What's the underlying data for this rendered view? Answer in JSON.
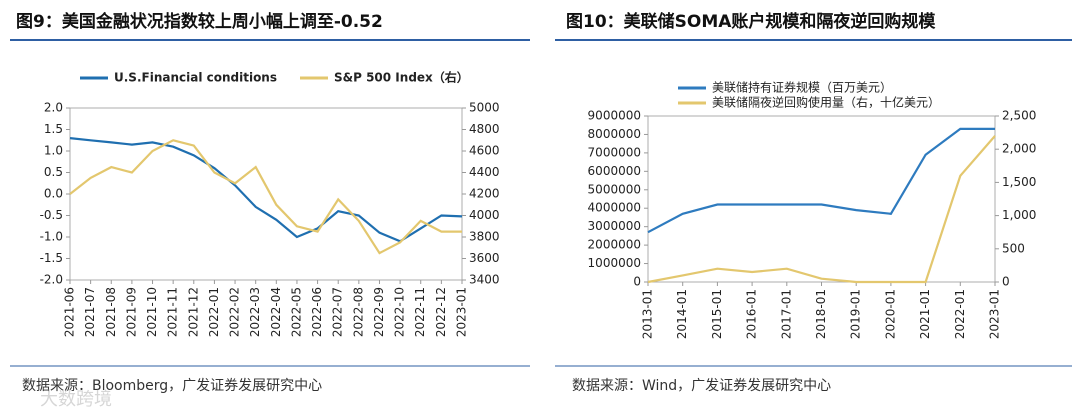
{
  "chart_data": [
    {
      "type": "line",
      "title": "图9：美国金融状况指数较上周小幅上调至-0.52",
      "source": "数据来源：Bloomberg，广发证券发展研究中心",
      "categories": [
        "2021-06",
        "2021-07",
        "2021-08",
        "2021-09",
        "2021-10",
        "2021-11",
        "2021-12",
        "2022-01",
        "2022-02",
        "2022-03",
        "2022-04",
        "2022-05",
        "2022-06",
        "2022-07",
        "2022-08",
        "2022-09",
        "2022-10",
        "2022-11",
        "2022-12",
        "2023-01"
      ],
      "series": [
        {
          "name": "U.S.Financial conditions",
          "color": "#1f6fb0",
          "values": [
            1.3,
            1.25,
            1.2,
            1.15,
            1.2,
            1.1,
            0.9,
            0.6,
            0.2,
            -0.3,
            -0.6,
            -1.0,
            -0.8,
            -0.4,
            -0.5,
            -0.9,
            -1.1,
            -0.8,
            -0.5,
            -0.52
          ]
        },
        {
          "name": "S&P 500 Index（右）",
          "color": "#e3c76e",
          "axis": "y2",
          "values": [
            4200,
            4350,
            4450,
            4400,
            4600,
            4700,
            4650,
            4400,
            4300,
            4450,
            4100,
            3900,
            3850,
            4150,
            3950,
            3650,
            3750,
            3950,
            3850,
            3850
          ]
        }
      ],
      "ylim": [
        -2,
        2
      ],
      "yticks": [
        {
          "value": -2,
          "label": "-2.0"
        },
        {
          "value": -1.5,
          "label": "-1.5"
        },
        {
          "value": -1,
          "label": "-1.0"
        },
        {
          "value": -0.5,
          "label": "-0.5"
        },
        {
          "value": 0,
          "label": "0.0"
        },
        {
          "value": 0.5,
          "label": "0.5"
        },
        {
          "value": 1,
          "label": "1.0"
        },
        {
          "value": 1.5,
          "label": "1.5"
        },
        {
          "value": 2,
          "label": "2.0"
        }
      ],
      "y2lim": [
        3400,
        5000
      ],
      "y2ticks": [
        3400,
        3600,
        3800,
        4000,
        4200,
        4400,
        4600,
        4800,
        5000
      ]
    },
    {
      "type": "line",
      "title": "图10：美联储SOMA账户规模和隔夜逆回购规模",
      "source": "数据来源：Wind，广发证券发展研究中心",
      "categories": [
        "2013-01",
        "2014-01",
        "2015-01",
        "2016-01",
        "2017-01",
        "2018-01",
        "2019-01",
        "2020-01",
        "2021-01",
        "2022-01",
        "2023-01"
      ],
      "series": [
        {
          "name": "美联储持有证券规模（百万美元）",
          "color": "#2e7bbf",
          "values": [
            2700000,
            3700000,
            4200000,
            4200000,
            4200000,
            4200000,
            3900000,
            3700000,
            6900000,
            8300000,
            8300000
          ]
        },
        {
          "name": "美联储隔夜逆回购使用量（右，十亿美元）",
          "color": "#e3c76e",
          "axis": "y2",
          "values": [
            0,
            100,
            200,
            150,
            200,
            50,
            0,
            0,
            0,
            1600,
            2200
          ]
        }
      ],
      "ylim": [
        0,
        9000000
      ],
      "yticks": [
        0,
        1000000,
        2000000,
        3000000,
        4000000,
        5000000,
        6000000,
        7000000,
        8000000,
        9000000
      ],
      "y2lim": [
        0,
        2500
      ],
      "y2ticks": [
        0,
        500,
        {
          "value": 1000,
          "label": "1,000"
        },
        {
          "value": 1500,
          "label": "1,500"
        },
        {
          "value": 2000,
          "label": "2,000"
        },
        {
          "value": 2500,
          "label": "2,500"
        }
      ]
    }
  ],
  "watermark": "大数跨境"
}
